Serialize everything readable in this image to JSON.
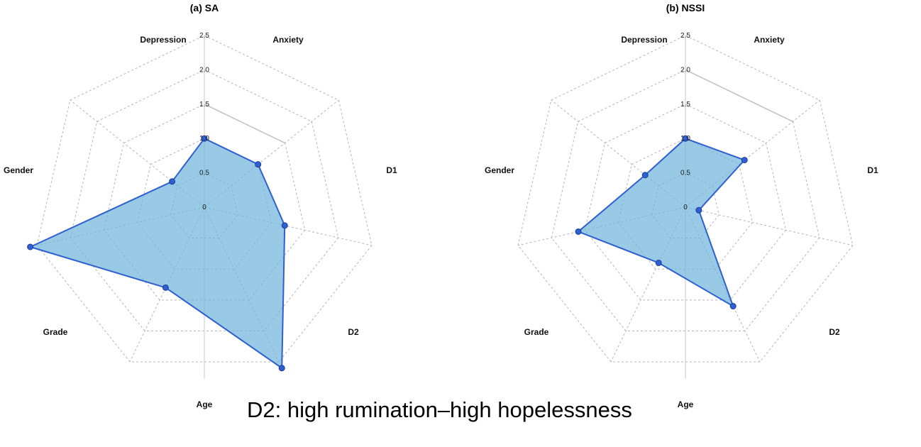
{
  "caption": "D2: high rumination–high hopelessness",
  "chart_data": [
    {
      "type": "radar",
      "title": "(a) SA",
      "axes": [
        "Depression",
        "Anxiety",
        "D1",
        "D2",
        "Age",
        "Grade",
        "Gender"
      ],
      "ticks": [
        "0",
        "0.5",
        "1.0",
        "1.5",
        "2.0",
        "2.5"
      ],
      "rmax": 2.5,
      "series": [
        {
          "values": [
            1.0,
            1.0,
            1.2,
            2.6,
            1.3,
            2.6,
            0.6
          ]
        }
      ],
      "colors": {
        "fill": "#6cb4da",
        "line": "#2f5fd0",
        "point": "#2f5fd0",
        "grid": "#b5b5b5",
        "highlight": "#c0c0c0"
      }
    },
    {
      "type": "radar",
      "title": "(b) NSSI",
      "axes": [
        "Depression",
        "Anxiety",
        "D1",
        "D2",
        "Age",
        "Grade",
        "Gender"
      ],
      "ticks": [
        "0",
        "0.5",
        "1.0",
        "1.5",
        "2.0",
        "2.5"
      ],
      "rmax": 2.5,
      "series": [
        {
          "values": [
            1.0,
            1.1,
            0.2,
            1.6,
            0.9,
            1.6,
            0.75
          ]
        }
      ],
      "colors": {
        "fill": "#6cb4da",
        "line": "#2f5fd0",
        "point": "#2f5fd0",
        "grid": "#b5b5b5",
        "highlight": "#c0c0c0"
      }
    }
  ]
}
